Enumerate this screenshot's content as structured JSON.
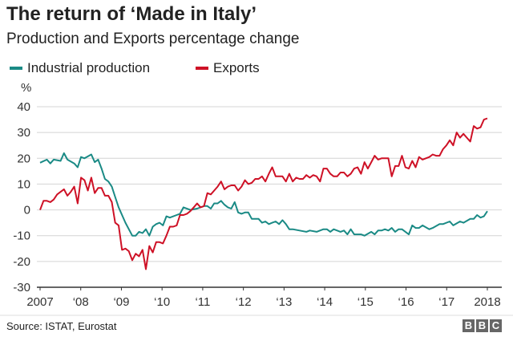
{
  "title": "The return of ‘Made in Italy’",
  "subtitle": "Production and Exports percentage change",
  "footer": {
    "source": "Source: ISTAT, Eurostat",
    "logo": "BBC"
  },
  "chart_data": {
    "type": "line",
    "ylabel": "%",
    "ylim": [
      -30,
      40
    ],
    "yticks": [
      40,
      30,
      20,
      10,
      0,
      -10,
      -20,
      -30
    ],
    "xlim": [
      "2007-01",
      "2017-12"
    ],
    "xticks": [
      {
        "label": "2007",
        "year": 2007
      },
      {
        "label": "‘08",
        "year": 2008
      },
      {
        "label": "‘09",
        "year": 2009
      },
      {
        "label": "‘10",
        "year": 2010
      },
      {
        "label": "‘11",
        "year": 2011
      },
      {
        "label": "‘12",
        "year": 2012
      },
      {
        "label": "‘13",
        "year": 2013
      },
      {
        "label": "‘14",
        "year": 2014
      },
      {
        "label": "‘15",
        "year": 2015
      },
      {
        "label": "‘16",
        "year": 2016
      },
      {
        "label": "‘17",
        "year": 2017
      },
      {
        "label": "2018",
        "year": 2018
      }
    ],
    "grid": true,
    "legend": "top-left",
    "series": [
      {
        "name": "Industrial production",
        "color": "#1a8a85",
        "points": [
          [
            "2007-01",
            18.3
          ],
          [
            "2007-03",
            19.5
          ],
          [
            "2007-04",
            18
          ],
          [
            "2007-05",
            19.5
          ],
          [
            "2007-07",
            19
          ],
          [
            "2007-08",
            22
          ],
          [
            "2007-09",
            19.5
          ],
          [
            "2007-11",
            18
          ],
          [
            "2007-12",
            16.5
          ],
          [
            "2008-01",
            20.5
          ],
          [
            "2008-02",
            20
          ],
          [
            "2008-04",
            21.5
          ],
          [
            "2008-05",
            18.5
          ],
          [
            "2008-06",
            19.5
          ],
          [
            "2008-07",
            16
          ],
          [
            "2008-08",
            12
          ],
          [
            "2008-09",
            11
          ],
          [
            "2008-10",
            9
          ],
          [
            "2008-11",
            5
          ],
          [
            "2008-12",
            1
          ],
          [
            "2009-02",
            -5
          ],
          [
            "2009-04",
            -10
          ],
          [
            "2009-05",
            -10
          ],
          [
            "2009-06",
            -8.5
          ],
          [
            "2009-07",
            -9
          ],
          [
            "2009-08",
            -7.5
          ],
          [
            "2009-09",
            -10
          ],
          [
            "2009-10",
            -6.5
          ],
          [
            "2009-11",
            -5.5
          ],
          [
            "2009-12",
            -5
          ],
          [
            "2010-01",
            -6
          ],
          [
            "2010-02",
            -2.5
          ],
          [
            "2010-03",
            -3
          ],
          [
            "2010-05",
            -2
          ],
          [
            "2010-06",
            -1.5
          ],
          [
            "2010-07",
            1
          ],
          [
            "2010-09",
            0
          ],
          [
            "2010-11",
            0.5
          ],
          [
            "2011-01",
            1.5
          ],
          [
            "2011-02",
            1.5
          ],
          [
            "2011-03",
            0.5
          ],
          [
            "2011-04",
            2.5
          ],
          [
            "2011-05",
            2.5
          ],
          [
            "2011-06",
            3.5
          ],
          [
            "2011-07",
            2
          ],
          [
            "2011-08",
            1
          ],
          [
            "2011-09",
            0.5
          ],
          [
            "2011-10",
            3
          ],
          [
            "2011-11",
            -1
          ],
          [
            "2011-12",
            -1.5
          ],
          [
            "2012-01",
            -1
          ],
          [
            "2012-02",
            -1
          ],
          [
            "2012-03",
            -3.5
          ],
          [
            "2012-04",
            -3.5
          ],
          [
            "2012-05",
            -3.5
          ],
          [
            "2012-06",
            -5
          ],
          [
            "2012-07",
            -4.5
          ],
          [
            "2012-08",
            -5.5
          ],
          [
            "2012-09",
            -5
          ],
          [
            "2012-10",
            -4.5
          ],
          [
            "2012-11",
            -5.5
          ],
          [
            "2012-12",
            -4
          ],
          [
            "2013-01",
            -5.5
          ],
          [
            "2013-02",
            -7.5
          ],
          [
            "2013-03",
            -7.5
          ],
          [
            "2013-05",
            -8
          ],
          [
            "2013-07",
            -8.5
          ],
          [
            "2013-08",
            -8
          ],
          [
            "2013-10",
            -8.5
          ],
          [
            "2013-12",
            -7.5
          ],
          [
            "2014-01",
            -7.5
          ],
          [
            "2014-02",
            -8.5
          ],
          [
            "2014-03",
            -7.5
          ],
          [
            "2014-05",
            -8.5
          ],
          [
            "2014-06",
            -8
          ],
          [
            "2014-07",
            -9.5
          ],
          [
            "2014-08",
            -7.5
          ],
          [
            "2014-09",
            -9.5
          ],
          [
            "2014-11",
            -9.5
          ],
          [
            "2014-12",
            -10
          ],
          [
            "2015-02",
            -8.5
          ],
          [
            "2015-03",
            -9.5
          ],
          [
            "2015-04",
            -8
          ],
          [
            "2015-05",
            -8
          ],
          [
            "2015-06",
            -7.5
          ],
          [
            "2015-07",
            -8
          ],
          [
            "2015-08",
            -7
          ],
          [
            "2015-09",
            -8.5
          ],
          [
            "2015-10",
            -7.5
          ],
          [
            "2015-11",
            -7.5
          ],
          [
            "2016-01",
            -9.5
          ],
          [
            "2016-02",
            -6
          ],
          [
            "2016-03",
            -7
          ],
          [
            "2016-04",
            -7
          ],
          [
            "2016-05",
            -6
          ],
          [
            "2016-07",
            -7.5
          ],
          [
            "2016-08",
            -7
          ],
          [
            "2016-10",
            -5.5
          ],
          [
            "2016-11",
            -5.5
          ],
          [
            "2017-01",
            -4.5
          ],
          [
            "2017-02",
            -6
          ],
          [
            "2017-04",
            -4.5
          ],
          [
            "2017-05",
            -5
          ],
          [
            "2017-07",
            -3.5
          ],
          [
            "2017-08",
            -3.5
          ],
          [
            "2017-09",
            -2
          ],
          [
            "2017-10",
            -3
          ],
          [
            "2017-11",
            -2.5
          ],
          [
            "2017-12",
            -0.5
          ]
        ]
      },
      {
        "name": "Exports",
        "color": "#ce1126",
        "points": [
          [
            "2007-01",
            0
          ],
          [
            "2007-02",
            3.5
          ],
          [
            "2007-03",
            3.5
          ],
          [
            "2007-04",
            3
          ],
          [
            "2007-05",
            4
          ],
          [
            "2007-06",
            6
          ],
          [
            "2007-07",
            7
          ],
          [
            "2007-08",
            8
          ],
          [
            "2007-09",
            5.5
          ],
          [
            "2007-10",
            7
          ],
          [
            "2007-11",
            9
          ],
          [
            "2007-12",
            2.5
          ],
          [
            "2008-01",
            12.5
          ],
          [
            "2008-02",
            11.5
          ],
          [
            "2008-03",
            7.5
          ],
          [
            "2008-04",
            12.5
          ],
          [
            "2008-05",
            6.5
          ],
          [
            "2008-06",
            8.5
          ],
          [
            "2008-07",
            8.5
          ],
          [
            "2008-08",
            5.5
          ],
          [
            "2008-09",
            5.5
          ],
          [
            "2008-10",
            3
          ],
          [
            "2008-11",
            -5
          ],
          [
            "2008-12",
            -6
          ],
          [
            "2009-01",
            -15.5
          ],
          [
            "2009-02",
            -15
          ],
          [
            "2009-03",
            -16
          ],
          [
            "2009-04",
            -19.5
          ],
          [
            "2009-05",
            -17
          ],
          [
            "2009-06",
            -18
          ],
          [
            "2009-07",
            -15.5
          ],
          [
            "2009-08",
            -23
          ],
          [
            "2009-09",
            -14
          ],
          [
            "2009-10",
            -16.5
          ],
          [
            "2009-11",
            -12.5
          ],
          [
            "2009-12",
            -12.5
          ],
          [
            "2010-01",
            -13
          ],
          [
            "2010-02",
            -10
          ],
          [
            "2010-03",
            -6.5
          ],
          [
            "2010-04",
            -6.5
          ],
          [
            "2010-05",
            -6
          ],
          [
            "2010-06",
            -2
          ],
          [
            "2010-07",
            -2
          ],
          [
            "2010-08",
            -1.5
          ],
          [
            "2010-09",
            -0.5
          ],
          [
            "2010-10",
            1
          ],
          [
            "2010-11",
            2.5
          ],
          [
            "2010-12",
            1
          ],
          [
            "2011-01",
            1.5
          ],
          [
            "2011-02",
            6.5
          ],
          [
            "2011-03",
            6
          ],
          [
            "2011-04",
            7.5
          ],
          [
            "2011-05",
            9
          ],
          [
            "2011-06",
            11
          ],
          [
            "2011-07",
            8
          ],
          [
            "2011-08",
            9
          ],
          [
            "2011-09",
            9.5
          ],
          [
            "2011-10",
            9.5
          ],
          [
            "2011-11",
            7.5
          ],
          [
            "2011-12",
            9
          ],
          [
            "2012-01",
            11.5
          ],
          [
            "2012-02",
            10
          ],
          [
            "2012-03",
            10.5
          ],
          [
            "2012-04",
            12
          ],
          [
            "2012-05",
            12
          ],
          [
            "2012-06",
            13
          ],
          [
            "2012-07",
            11
          ],
          [
            "2012-08",
            14
          ],
          [
            "2012-09",
            16.5
          ],
          [
            "2012-10",
            13
          ],
          [
            "2012-11",
            13
          ],
          [
            "2012-12",
            13
          ],
          [
            "2013-01",
            11
          ],
          [
            "2013-02",
            14
          ],
          [
            "2013-03",
            11
          ],
          [
            "2013-04",
            12.5
          ],
          [
            "2013-05",
            12
          ],
          [
            "2013-06",
            12
          ],
          [
            "2013-07",
            13.5
          ],
          [
            "2013-08",
            12.5
          ],
          [
            "2013-09",
            13.5
          ],
          [
            "2013-10",
            13
          ],
          [
            "2013-11",
            11
          ],
          [
            "2013-12",
            16
          ],
          [
            "2014-01",
            16
          ],
          [
            "2014-02",
            14
          ],
          [
            "2014-03",
            13
          ],
          [
            "2014-04",
            13
          ],
          [
            "2014-05",
            14.5
          ],
          [
            "2014-06",
            14.5
          ],
          [
            "2014-07",
            13
          ],
          [
            "2014-08",
            14
          ],
          [
            "2014-09",
            16
          ],
          [
            "2014-10",
            16.5
          ],
          [
            "2014-11",
            14
          ],
          [
            "2014-12",
            18.5
          ],
          [
            "2015-01",
            16
          ],
          [
            "2015-02",
            18.5
          ],
          [
            "2015-03",
            21
          ],
          [
            "2015-04",
            19.5
          ],
          [
            "2015-05",
            20
          ],
          [
            "2015-06",
            20
          ],
          [
            "2015-07",
            20
          ],
          [
            "2015-08",
            13
          ],
          [
            "2015-09",
            17
          ],
          [
            "2015-10",
            17
          ],
          [
            "2015-11",
            21
          ],
          [
            "2015-12",
            16.5
          ],
          [
            "2016-01",
            16
          ],
          [
            "2016-02",
            19
          ],
          [
            "2016-03",
            16.5
          ],
          [
            "2016-04",
            20.5
          ],
          [
            "2016-05",
            19.5
          ],
          [
            "2016-06",
            20
          ],
          [
            "2016-07",
            20.5
          ],
          [
            "2016-08",
            21.5
          ],
          [
            "2016-09",
            21
          ],
          [
            "2016-10",
            21
          ],
          [
            "2016-11",
            23.5
          ],
          [
            "2016-12",
            25
          ],
          [
            "2017-01",
            27
          ],
          [
            "2017-02",
            25
          ],
          [
            "2017-03",
            30
          ],
          [
            "2017-04",
            28
          ],
          [
            "2017-05",
            29.5
          ],
          [
            "2017-06",
            28
          ],
          [
            "2017-07",
            26.5
          ],
          [
            "2017-08",
            32.5
          ],
          [
            "2017-09",
            31.5
          ],
          [
            "2017-10",
            32
          ],
          [
            "2017-11",
            35
          ],
          [
            "2017-12",
            35.5
          ]
        ]
      }
    ]
  }
}
